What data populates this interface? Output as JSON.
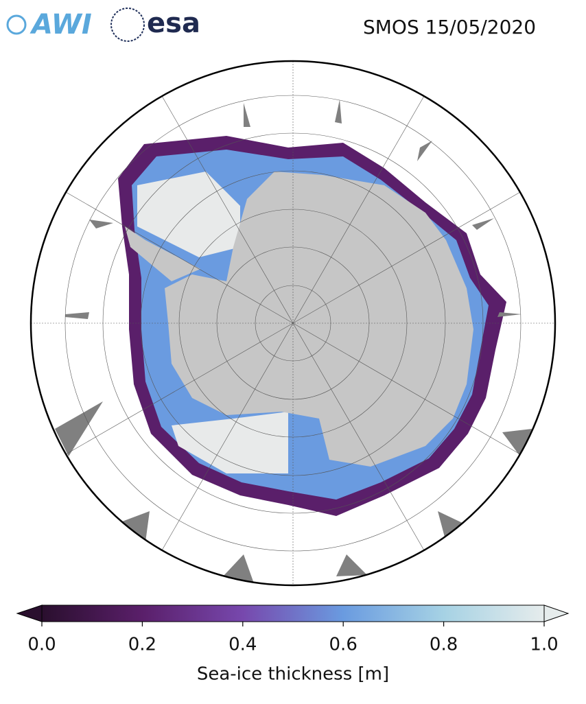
{
  "header": {
    "logos": [
      "AWI",
      "esa"
    ],
    "title": "SMOS 15/05/2020"
  },
  "colorbar": {
    "label": "Sea-ice thickness [m]",
    "lim": [
      0,
      1
    ],
    "ticks": [
      {
        "value": 0,
        "label": "0.0"
      },
      {
        "value": 0.2,
        "label": "0.2"
      },
      {
        "value": 0.4,
        "label": "0.4"
      },
      {
        "value": 0.6,
        "label": "0.6"
      },
      {
        "value": 0.8,
        "label": "0.8"
      },
      {
        "value": 1,
        "label": "1.0"
      }
    ]
  }
}
